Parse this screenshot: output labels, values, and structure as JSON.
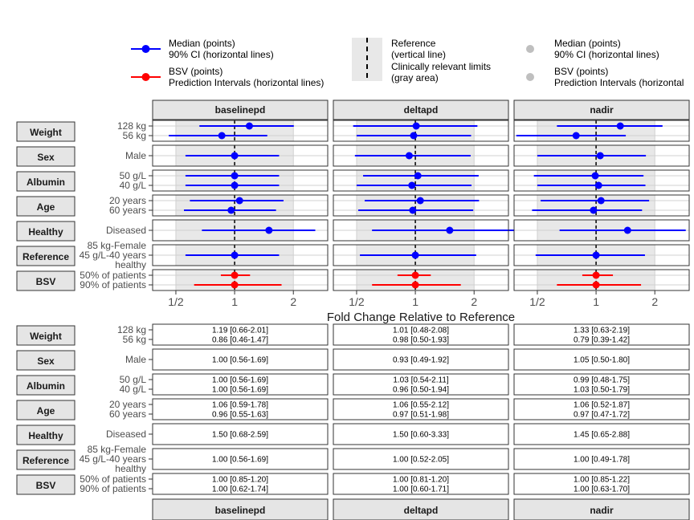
{
  "legend": {
    "median_title": "Median (points)",
    "median_sub": "90% CI (horizontal lines)",
    "bsv_title": "BSV (points)",
    "bsv_sub": "Prediction Intervals (horizontal lines)",
    "ref_title": "Reference",
    "ref_sub": "(vertical line)",
    "limits_title": "Clinically relevant limits",
    "limits_sub": "(gray area)",
    "r_median_title": "Median (points)",
    "r_median_sub": "90% CI (horizontal lines)",
    "r_bsv_title": "BSV (points)",
    "r_bsv_sub": "Prediction Intervals (horizontal"
  },
  "colors": {
    "median": "#0000ff",
    "bsv": "#ff0000",
    "shade": "#e8e8e8",
    "strip": "#e5e5e5",
    "legend_gray": "#bfbfbf"
  },
  "chart_data": {
    "type": "forest",
    "xlabel": "Fold Change Relative to Reference",
    "xscale": "log",
    "xlim": [
      0.38,
      3.0
    ],
    "xticks": [
      "1/2",
      "1",
      "2"
    ],
    "xtick_values": [
      0.5,
      1,
      2
    ],
    "reference_line": 1,
    "clinical_limits": [
      0.5,
      2
    ],
    "panels": [
      "baselinepd",
      "deltapd",
      "nadir"
    ],
    "groups": [
      {
        "name": "Weight",
        "levels": [
          "128 kg",
          "56 kg"
        ]
      },
      {
        "name": "Sex",
        "levels": [
          "Male"
        ]
      },
      {
        "name": "Albumin",
        "levels": [
          "50 g/L",
          "40 g/L"
        ]
      },
      {
        "name": "Age",
        "levels": [
          "20 years",
          "60 years"
        ]
      },
      {
        "name": "Healthy",
        "levels": [
          "Diseased"
        ]
      },
      {
        "name": "Reference",
        "levels": [
          "85 kg-Female\n45 g/L-40 years\nhealthy"
        ]
      },
      {
        "name": "BSV",
        "levels": [
          "50% of patients",
          "90% of patients"
        ],
        "bsv": true
      }
    ],
    "values": {
      "baselinepd": [
        [
          [
            1.19,
            0.66,
            2.01
          ],
          [
            0.86,
            0.46,
            1.47
          ]
        ],
        [
          [
            1.0,
            0.56,
            1.69
          ]
        ],
        [
          [
            1.0,
            0.56,
            1.69
          ],
          [
            1.0,
            0.56,
            1.69
          ]
        ],
        [
          [
            1.06,
            0.59,
            1.78
          ],
          [
            0.96,
            0.55,
            1.63
          ]
        ],
        [
          [
            1.5,
            0.68,
            2.59
          ]
        ],
        [
          [
            1.0,
            0.56,
            1.69
          ]
        ],
        [
          [
            1.0,
            0.85,
            1.2
          ],
          [
            1.0,
            0.62,
            1.74
          ]
        ]
      ],
      "deltapd": [
        [
          [
            1.01,
            0.48,
            2.08
          ],
          [
            0.98,
            0.5,
            1.93
          ]
        ],
        [
          [
            0.93,
            0.49,
            1.92
          ]
        ],
        [
          [
            1.03,
            0.54,
            2.11
          ],
          [
            0.96,
            0.5,
            1.94
          ]
        ],
        [
          [
            1.06,
            0.55,
            2.12
          ],
          [
            0.97,
            0.51,
            1.98
          ]
        ],
        [
          [
            1.5,
            0.6,
            3.33
          ]
        ],
        [
          [
            1.0,
            0.52,
            2.05
          ]
        ],
        [
          [
            1.0,
            0.81,
            1.2
          ],
          [
            1.0,
            0.6,
            1.71
          ]
        ]
      ],
      "nadir": [
        [
          [
            1.33,
            0.63,
            2.19
          ],
          [
            0.79,
            0.39,
            1.42
          ]
        ],
        [
          [
            1.05,
            0.5,
            1.8
          ]
        ],
        [
          [
            0.99,
            0.48,
            1.75
          ],
          [
            1.03,
            0.5,
            1.79
          ]
        ],
        [
          [
            1.06,
            0.52,
            1.87
          ],
          [
            0.97,
            0.47,
            1.72
          ]
        ],
        [
          [
            1.45,
            0.65,
            2.88
          ]
        ],
        [
          [
            1.0,
            0.49,
            1.78
          ]
        ],
        [
          [
            1.0,
            0.85,
            1.22
          ],
          [
            1.0,
            0.63,
            1.7
          ]
        ]
      ]
    }
  }
}
